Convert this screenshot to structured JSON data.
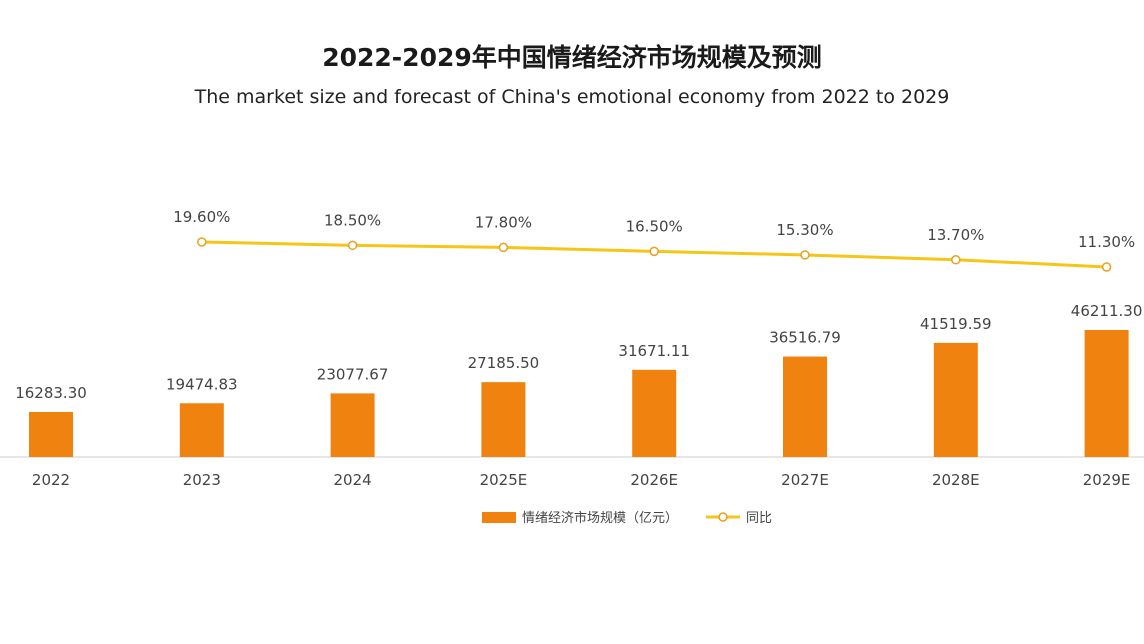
{
  "chart_data": {
    "type": "bar",
    "title": "2022-2029年中国情绪经济市场规模及预测",
    "subtitle": "The market size and forecast of China's emotional economy from 2022 to 2029",
    "categories": [
      "2022",
      "2023",
      "2024",
      "2025E",
      "2026E",
      "2027E",
      "2028E",
      "2029E"
    ],
    "series": [
      {
        "name": "情绪经济市场规模（亿元）",
        "type": "bar",
        "values": [
          16283.3,
          19474.83,
          23077.67,
          27185.5,
          31671.11,
          36516.79,
          41519.59,
          46211.3
        ],
        "labels": [
          "16283.30",
          "19474.83",
          "23077.67",
          "27185.50",
          "31671.11",
          "36516.79",
          "41519.59",
          "46211.30"
        ]
      },
      {
        "name": "同比",
        "type": "line",
        "values": [
          null,
          19.6,
          18.5,
          17.8,
          16.5,
          15.3,
          13.7,
          11.3
        ],
        "labels": [
          "",
          "19.60%",
          "18.50%",
          "17.80%",
          "16.50%",
          "15.30%",
          "13.70%",
          "11.30%"
        ]
      }
    ],
    "legend": "bottom-center",
    "colors": {
      "bar": "#F0820F",
      "line": "#F5C518",
      "axis": "#cccccc",
      "text": "#444444"
    }
  }
}
